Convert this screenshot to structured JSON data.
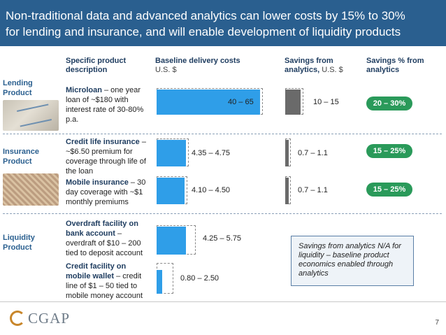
{
  "title": {
    "line1": "Non-traditional data and advanced analytics can lower costs by 15% to 30%",
    "line2": "for lending and insurance, and will enable development of liquidity products"
  },
  "columns": {
    "desc": {
      "label": "Specific product description"
    },
    "baseline": {
      "label": "Baseline delivery costs",
      "unit": "U.S. $"
    },
    "savings": {
      "label": "Savings from analytics",
      "unit": "U.S. $"
    },
    "pct": {
      "label": "Savings % from analytics"
    }
  },
  "sections": {
    "lending": {
      "label": "Lending Product"
    },
    "insurance": {
      "label": "Insurance Product"
    },
    "liquidity": {
      "label": "Liquidity Product"
    }
  },
  "rows": [
    {
      "name_bold": "Microloan",
      "rest": " – one year loan of ~$180 with interest rate of 30-80% p.a.",
      "baseline": "40 – 65",
      "savings": "10 – 15",
      "pct": "20 – 30%"
    },
    {
      "name_bold": "Credit life insurance",
      "rest": " – ~$6.50 premium for coverage through life of the loan",
      "baseline": "4.35 – 4.75",
      "savings": "0.7 – 1.1",
      "pct": "15 – 25%"
    },
    {
      "name_bold": "Mobile insurance",
      "rest": " – 30 day coverage with ~$1 monthly premiums",
      "baseline": "4.10 – 4.50",
      "savings": "0.7 – 1.1",
      "pct": "15 – 25%"
    },
    {
      "name_bold": "Overdraft facility on bank account",
      "rest": " – overdraft of $10 – 200 tied to deposit account",
      "baseline": "4.25 – 5.75"
    },
    {
      "name_bold": "Credit facility on mobile wallet",
      "rest": " – credit line of $1 – 50 tied to mobile money account",
      "baseline": "0.80 – 2.50"
    }
  ],
  "note": "Savings from analytics N/A for liquidity – baseline product economics enabled through analytics",
  "logo": "CGAP",
  "page_number": "7",
  "colors": {
    "header": "#2a5f8f",
    "bar": "#2f9ee8",
    "savings_bar": "#6a6a6a",
    "pill": "#2a9a5a"
  }
}
